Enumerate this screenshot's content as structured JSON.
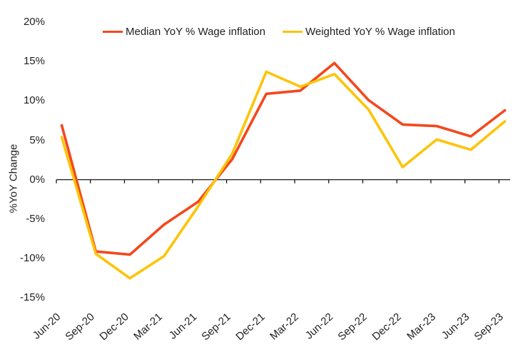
{
  "chart_data": {
    "type": "line",
    "categories": [
      "Jun-20",
      "Sep-20",
      "Dec-20",
      "Mar-21",
      "Jun-21",
      "Sep-21",
      "Dec-21",
      "Mar-22",
      "Jun-22",
      "Sep-22",
      "Dec-22",
      "Mar-23",
      "Jun-23",
      "Sep-23"
    ],
    "series": [
      {
        "name": "Median YoY % Wage inflation",
        "color": "#f3481d",
        "values": [
          6.9,
          -9.1,
          -9.5,
          -5.7,
          -2.8,
          2.6,
          10.9,
          11.3,
          14.8,
          10.1,
          7.0,
          6.8,
          5.5,
          8.8
        ]
      },
      {
        "name": "Weighted YoY % Wage inflation",
        "color": "#fdc405",
        "values": [
          5.4,
          -9.4,
          -12.5,
          -9.7,
          -3.4,
          3.3,
          13.7,
          11.8,
          13.4,
          8.9,
          1.6,
          5.1,
          3.8,
          7.4
        ]
      }
    ],
    "title": "",
    "xlabel": "",
    "ylabel": "%YoY Change",
    "ylim": [
      -15,
      20
    ],
    "ytick_values": [
      20,
      15,
      10,
      5,
      0,
      -5,
      -10,
      -15
    ],
    "ytick_labels": [
      "20%",
      "15%",
      "10%",
      "5%",
      "0%",
      "-5%",
      "-10%",
      "-15%"
    ],
    "legend_position": "top",
    "grid": false,
    "axis_color": "#000000",
    "text_color": "#1f1f1f",
    "background_color": "#ffffff"
  }
}
